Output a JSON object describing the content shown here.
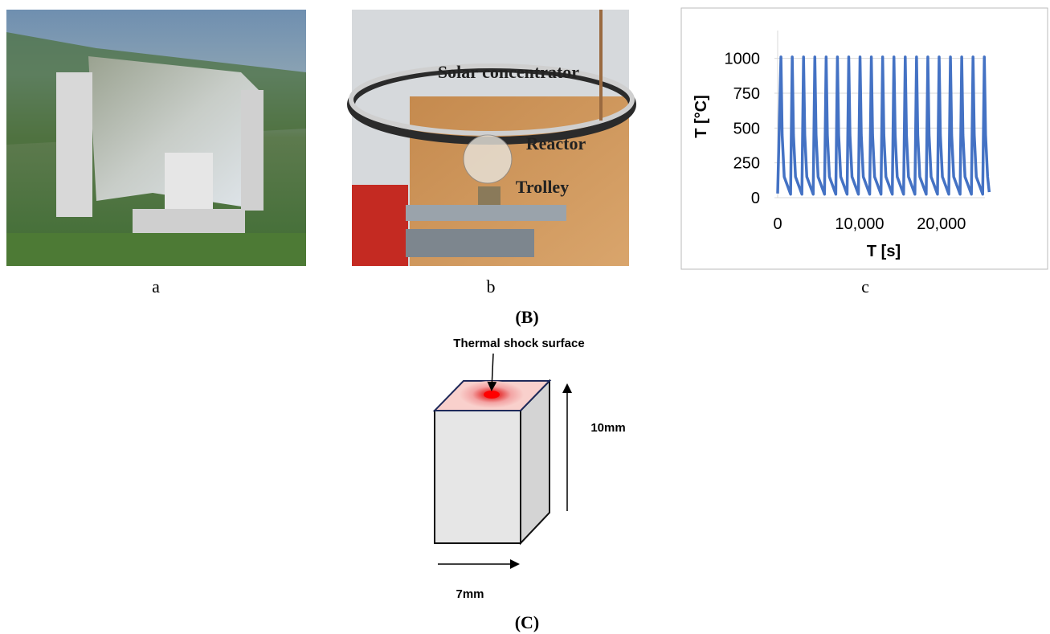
{
  "panel_labels": {
    "a": "a",
    "b": "b",
    "c": "c",
    "group_b": "(B)",
    "group_c": "(C)"
  },
  "photo_b_annotations": {
    "concentrator": "Solar concentrator",
    "reactor": "Reactor",
    "trolley": "Trolley"
  },
  "diagram": {
    "surface_label": "Thermal shock surface",
    "height_label": "10mm",
    "width_label": "7mm"
  },
  "chart_data": {
    "type": "line",
    "ylabel": "T [°C]",
    "xlabel": "T [s]",
    "color": "#4472c4",
    "grid": true,
    "xlim": [
      0,
      26000
    ],
    "ylim": [
      0,
      1200
    ],
    "xticks": [
      0,
      {
        "value": 10000,
        "label": "10,000"
      },
      {
        "value": 20000,
        "label": "20,000"
      }
    ],
    "yticks": [
      0,
      250,
      500,
      750,
      1000
    ],
    "x": [
      0,
      400,
      550,
      800,
      1580,
      1780,
      1930,
      2180,
      2960,
      3160,
      3310,
      3560,
      4340,
      4540,
      4690,
      4940,
      5720,
      5920,
      6070,
      6320,
      7100,
      7300,
      7450,
      7700,
      8480,
      8680,
      8830,
      9080,
      9860,
      10060,
      10210,
      10460,
      11240,
      11440,
      11590,
      11840,
      12620,
      12820,
      12970,
      13220,
      14000,
      14200,
      14350,
      14600,
      15380,
      15580,
      15730,
      15980,
      16760,
      16960,
      17110,
      17360,
      18140,
      18340,
      18490,
      18740,
      19520,
      19720,
      19870,
      20120,
      20900,
      21100,
      21250,
      21500,
      22280,
      22480,
      22630,
      22880,
      23660,
      23860,
      24010,
      24260,
      25040,
      25240,
      25390,
      25640,
      25840
    ],
    "values": [
      30,
      1010,
      450,
      150,
      25,
      1010,
      450,
      150,
      25,
      1010,
      450,
      150,
      25,
      1010,
      450,
      150,
      25,
      1010,
      450,
      150,
      25,
      1010,
      450,
      150,
      25,
      1010,
      450,
      150,
      25,
      1010,
      450,
      150,
      25,
      1010,
      450,
      150,
      25,
      1010,
      450,
      150,
      25,
      1010,
      450,
      150,
      25,
      1010,
      450,
      150,
      25,
      1010,
      450,
      150,
      25,
      1010,
      450,
      150,
      25,
      1010,
      450,
      150,
      25,
      1010,
      450,
      150,
      25,
      1010,
      450,
      150,
      25,
      1010,
      450,
      150,
      25,
      1010,
      450,
      150,
      40
    ]
  }
}
